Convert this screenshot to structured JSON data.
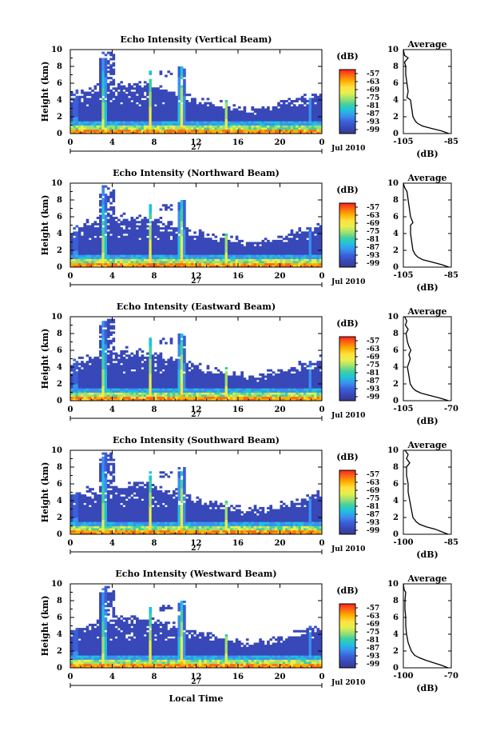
{
  "panels": [
    {
      "title": "Echo Intensity (Vertical Beam)",
      "avg_title": "Average",
      "avg_xticks": [
        "-105",
        "-85"
      ],
      "avg_xlim": [
        -105,
        -85
      ],
      "profile": [
        [
          0,
          -86
        ],
        [
          0.3,
          -89
        ],
        [
          0.6,
          -93
        ],
        [
          0.9,
          -97
        ],
        [
          1.2,
          -99
        ],
        [
          1.5,
          -100
        ],
        [
          2,
          -101
        ],
        [
          3,
          -101.5
        ],
        [
          4,
          -102
        ],
        [
          4.3,
          -103.5
        ],
        [
          5,
          -103
        ],
        [
          6,
          -103.5
        ],
        [
          7,
          -104
        ],
        [
          8,
          -104
        ],
        [
          8.5,
          -104.5
        ],
        [
          9,
          -103
        ],
        [
          9.3,
          -104.5
        ],
        [
          10,
          -105
        ]
      ]
    },
    {
      "title": "Echo Intensity (Northward Beam)",
      "avg_title": "Average",
      "avg_xticks": [
        "-105",
        "-85"
      ],
      "avg_xlim": [
        -105,
        -85
      ],
      "profile": [
        [
          0,
          -86
        ],
        [
          0.3,
          -89
        ],
        [
          0.6,
          -93
        ],
        [
          0.9,
          -97
        ],
        [
          1.2,
          -99
        ],
        [
          1.5,
          -100
        ],
        [
          2,
          -101
        ],
        [
          3,
          -101.5
        ],
        [
          4,
          -102
        ],
        [
          5,
          -102
        ],
        [
          5.3,
          -101
        ],
        [
          6,
          -102
        ],
        [
          7,
          -102.5
        ],
        [
          8,
          -103
        ],
        [
          9,
          -103.5
        ],
        [
          9.5,
          -104.5
        ],
        [
          10,
          -105
        ]
      ]
    },
    {
      "title": "Echo Intensity (Eastward Beam)",
      "avg_title": "Average",
      "avg_xticks": [
        "-105",
        "-70"
      ],
      "avg_xlim": [
        -105,
        -70
      ],
      "profile": [
        [
          0,
          -72
        ],
        [
          0.3,
          -78
        ],
        [
          0.6,
          -85
        ],
        [
          0.9,
          -92
        ],
        [
          1.2,
          -96
        ],
        [
          1.5,
          -98
        ],
        [
          2,
          -100
        ],
        [
          3,
          -101
        ],
        [
          4,
          -102
        ],
        [
          4.5,
          -101
        ],
        [
          5,
          -100
        ],
        [
          5.5,
          -101
        ],
        [
          6,
          -99.5
        ],
        [
          6.5,
          -101
        ],
        [
          7,
          -102
        ],
        [
          8,
          -103
        ],
        [
          8.5,
          -101.5
        ],
        [
          9,
          -103.5
        ],
        [
          9.5,
          -102.5
        ],
        [
          10,
          -104
        ]
      ]
    },
    {
      "title": "Echo Intensity (Southward Beam)",
      "avg_title": "Average",
      "avg_xticks": [
        "-100",
        "-85"
      ],
      "avg_xlim": [
        -100,
        -85
      ],
      "profile": [
        [
          0,
          -86
        ],
        [
          0.3,
          -88
        ],
        [
          0.6,
          -90
        ],
        [
          0.9,
          -93
        ],
        [
          1.2,
          -95
        ],
        [
          1.5,
          -96
        ],
        [
          2,
          -97
        ],
        [
          3,
          -97.5
        ],
        [
          4,
          -98
        ],
        [
          5,
          -98.5
        ],
        [
          6,
          -98.5
        ],
        [
          7,
          -99
        ],
        [
          8,
          -99
        ],
        [
          8.5,
          -98
        ],
        [
          9,
          -99
        ],
        [
          9.5,
          -98.5
        ],
        [
          10,
          -99.5
        ]
      ]
    },
    {
      "title": "Echo Intensity (Westward Beam)",
      "avg_title": "Average",
      "avg_xticks": [
        "-100",
        "-70"
      ],
      "avg_xlim": [
        -100,
        -70
      ],
      "profile": [
        [
          0,
          -72
        ],
        [
          0.3,
          -76
        ],
        [
          0.6,
          -81
        ],
        [
          0.9,
          -86
        ],
        [
          1.2,
          -90
        ],
        [
          1.5,
          -93
        ],
        [
          2,
          -95
        ],
        [
          3,
          -97
        ],
        [
          4,
          -98
        ],
        [
          5,
          -98.5
        ],
        [
          6,
          -98.5
        ],
        [
          7,
          -99
        ],
        [
          8,
          -99
        ],
        [
          9,
          -98.5
        ],
        [
          9.3,
          -99.5
        ],
        [
          10,
          -100
        ]
      ]
    }
  ],
  "axes": {
    "ylabel": "Height (km)",
    "yticks": [
      "0",
      "2",
      "4",
      "6",
      "8",
      "10"
    ],
    "xticks": [
      "0",
      "4",
      "8",
      "12",
      "16",
      "20",
      "0"
    ],
    "day_label": "27",
    "date_label": "Jul 2010",
    "xlabel": "Local Time",
    "avg_xlabel": "(dB)"
  },
  "colorbar": {
    "unit": "(dB)",
    "ticks": [
      "-57",
      "-63",
      "-69",
      "-75",
      "-81",
      "-87",
      "-93",
      "-99"
    ],
    "colors": [
      "#ff2020",
      "#ff6a10",
      "#ffb000",
      "#ffe040",
      "#e8f04a",
      "#a0e070",
      "#40d0a0",
      "#20c0e0",
      "#3a90ef",
      "#3a5fd8",
      "#3848b8",
      "#363c8c"
    ]
  },
  "chart_data": [
    {
      "type": "heatmap",
      "title": "Echo Intensity (Vertical Beam)",
      "xlabel": "",
      "ylabel": "Height (km)",
      "xlim": [
        0,
        24
      ],
      "ylim": [
        0,
        10
      ],
      "color_range_db": [
        -99,
        -57
      ]
    },
    {
      "type": "line",
      "title": "Average",
      "xlabel": "(dB)",
      "xlim": [
        -105,
        -85
      ],
      "ylim": [
        0,
        10
      ]
    },
    {
      "type": "heatmap",
      "title": "Echo Intensity (Northward Beam)",
      "ylabel": "Height (km)",
      "xlim": [
        0,
        24
      ],
      "ylim": [
        0,
        10
      ],
      "color_range_db": [
        -99,
        -57
      ]
    },
    {
      "type": "line",
      "title": "Average",
      "xlabel": "(dB)",
      "xlim": [
        -105,
        -85
      ],
      "ylim": [
        0,
        10
      ]
    },
    {
      "type": "heatmap",
      "title": "Echo Intensity (Eastward Beam)",
      "ylabel": "Height (km)",
      "xlim": [
        0,
        24
      ],
      "ylim": [
        0,
        10
      ],
      "color_range_db": [
        -99,
        -57
      ]
    },
    {
      "type": "line",
      "title": "Average",
      "xlabel": "(dB)",
      "xlim": [
        -105,
        -70
      ],
      "ylim": [
        0,
        10
      ]
    },
    {
      "type": "heatmap",
      "title": "Echo Intensity (Southward Beam)",
      "ylabel": "Height (km)",
      "xlim": [
        0,
        24
      ],
      "ylim": [
        0,
        10
      ],
      "color_range_db": [
        -99,
        -57
      ]
    },
    {
      "type": "line",
      "title": "Average",
      "xlabel": "(dB)",
      "xlim": [
        -100,
        -85
      ],
      "ylim": [
        0,
        10
      ]
    },
    {
      "type": "heatmap",
      "title": "Echo Intensity (Westward Beam)",
      "xlabel": "Local Time",
      "ylabel": "Height (km)",
      "xlim": [
        0,
        24
      ],
      "ylim": [
        0,
        10
      ],
      "color_range_db": [
        -99,
        -57
      ]
    },
    {
      "type": "line",
      "title": "Average",
      "xlabel": "(dB)",
      "xlim": [
        -100,
        -70
      ],
      "ylim": [
        0,
        10
      ]
    }
  ]
}
